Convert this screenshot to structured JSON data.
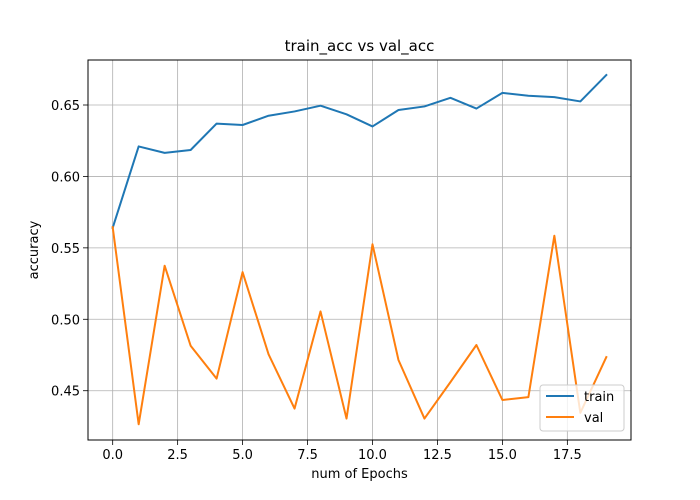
{
  "chart_data": {
    "type": "line",
    "title": "train_acc vs val_acc",
    "xlabel": "num of Epochs",
    "ylabel": "accuracy",
    "x": [
      0,
      1,
      2,
      3,
      4,
      5,
      6,
      7,
      8,
      9,
      10,
      11,
      12,
      13,
      14,
      15,
      16,
      17,
      18,
      19
    ],
    "xlim": [
      -0.95,
      19.95
    ],
    "ylim": [
      0.4155,
      0.6815
    ],
    "xticks": [
      0,
      2.5,
      5,
      7.5,
      10,
      12.5,
      15,
      17.5
    ],
    "xtick_labels": [
      "0.0",
      "2.5",
      "5.0",
      "7.5",
      "10.0",
      "12.5",
      "15.0",
      "17.5"
    ],
    "yticks": [
      0.45,
      0.5,
      0.55,
      0.6,
      0.65
    ],
    "ytick_labels": [
      "0.45",
      "0.50",
      "0.55",
      "0.60",
      "0.65"
    ],
    "grid": true,
    "legend_position": "lower right",
    "series": [
      {
        "name": "train",
        "color": "#1f77b4",
        "values": [
          0.564,
          0.621,
          0.6165,
          0.6185,
          0.637,
          0.636,
          0.6425,
          0.6455,
          0.6495,
          0.6435,
          0.635,
          0.6465,
          0.649,
          0.655,
          0.6475,
          0.6585,
          0.6565,
          0.6555,
          0.6525,
          0.671
        ]
      },
      {
        "name": "val",
        "color": "#ff7f0e",
        "values": [
          0.5645,
          0.4265,
          0.5375,
          0.4815,
          0.4585,
          0.533,
          0.4755,
          0.4375,
          0.5055,
          0.4305,
          0.5525,
          0.4715,
          0.4305,
          0.456,
          0.482,
          0.4435,
          0.4455,
          0.5585,
          0.4345,
          0.4735
        ]
      }
    ]
  }
}
